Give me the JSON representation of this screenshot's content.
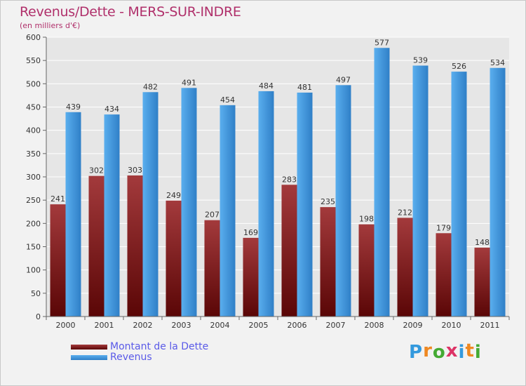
{
  "title": "Revenus/Dette - MERS-SUR-INDRE",
  "subtitle": "(en milliers d'€)",
  "logo": {
    "text": "Proxiti",
    "letters": [
      {
        "ch": "P",
        "color": "#3399dd"
      },
      {
        "ch": "r",
        "color": "#ee8822"
      },
      {
        "ch": "o",
        "color": "#44aa33"
      },
      {
        "ch": "x",
        "color": "#dd3366"
      },
      {
        "ch": "i",
        "color": "#3399dd"
      },
      {
        "ch": "t",
        "color": "#ee8822"
      },
      {
        "ch": "i",
        "color": "#44aa33"
      }
    ]
  },
  "colors": {
    "dette": "#7b1518",
    "revenus": "#3f96df",
    "grid": "#ffffff",
    "plot_bg": "#e6e6e6",
    "title": "#b0306b",
    "legend_text": "#5a5ae8"
  },
  "chart_data": {
    "type": "bar",
    "title": "Revenus/Dette - MERS-SUR-INDRE",
    "subtitle": "(en milliers d'€)",
    "categories": [
      "2000",
      "2001",
      "2002",
      "2003",
      "2004",
      "2005",
      "2006",
      "2007",
      "2008",
      "2009",
      "2010",
      "2011"
    ],
    "series": [
      {
        "name": "Montant de la Dette",
        "color": "#7b1518",
        "values": [
          241,
          302,
          303,
          249,
          207,
          169,
          283,
          235,
          198,
          212,
          179,
          148
        ]
      },
      {
        "name": "Revenus",
        "color": "#3f96df",
        "values": [
          439,
          434,
          482,
          491,
          454,
          484,
          481,
          497,
          577,
          539,
          526,
          534
        ]
      }
    ],
    "ylim": [
      0,
      600
    ],
    "yticks": [
      0,
      50,
      100,
      150,
      200,
      250,
      300,
      350,
      400,
      450,
      500,
      550,
      600
    ],
    "grid": true,
    "legend_position": "bottom-left",
    "data_labels": true
  }
}
